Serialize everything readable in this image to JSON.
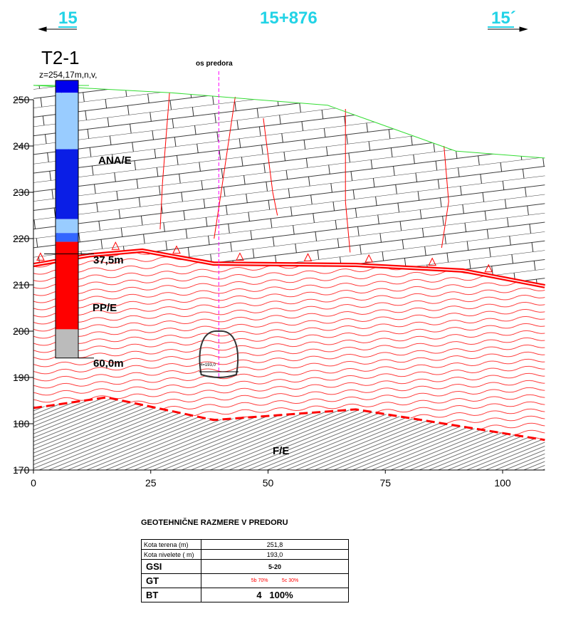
{
  "header": {
    "left_station": "15",
    "center_station": "15+876",
    "right_station": "15´"
  },
  "borehole": {
    "name": "T2-1",
    "elevation": "z=254,17m,n,v,",
    "depth_1": "37,5m",
    "depth_2": "60,0m",
    "segments": [
      {
        "top": 254.17,
        "bottom": 251.5,
        "color": "#0000ee"
      },
      {
        "top": 251.5,
        "bottom": 239.3,
        "color": "#99ccff"
      },
      {
        "top": 239.3,
        "bottom": 224.2,
        "color": "#0a1ee6"
      },
      {
        "top": 224.2,
        "bottom": 221.2,
        "color": "#99ccff"
      },
      {
        "top": 221.2,
        "bottom": 219.3,
        "color": "#3366ff"
      },
      {
        "top": 219.3,
        "bottom": 200.4,
        "color": "#ff0000"
      },
      {
        "top": 200.4,
        "bottom": 194.2,
        "color": "#bbbbbb"
      }
    ]
  },
  "tunnel_axis_label": "os predora",
  "tunnel_label": "H=193,0",
  "layers": {
    "upper": "ANA/E",
    "middle": "PP/E",
    "lower": "F/E"
  },
  "chart_data": {
    "type": "geological-profile",
    "xlim": [
      0,
      110
    ],
    "ylim": [
      170,
      252
    ],
    "xticks": [
      0,
      25,
      50,
      75,
      100
    ],
    "yticks": [
      170,
      180,
      190,
      200,
      210,
      220,
      230,
      240,
      250
    ],
    "terrain": [
      [
        0,
        253.1
      ],
      [
        29.3,
        251.5
      ],
      [
        62.7,
        248.8
      ],
      [
        65.7,
        247.7
      ],
      [
        90,
        238.9
      ],
      [
        109,
        237.4
      ]
    ],
    "boundary_ana_pp": [
      [
        0,
        214.3
      ],
      [
        12,
        216.4
      ],
      [
        23.2,
        217.4
      ],
      [
        38.4,
        214.6
      ],
      [
        68.7,
        214.3
      ],
      [
        91.5,
        213.1
      ],
      [
        109,
        209.7
      ]
    ],
    "boundary_pp_fe": [
      [
        0,
        183.4
      ],
      [
        15.6,
        185.7
      ],
      [
        38.4,
        180.8
      ],
      [
        68.7,
        183.1
      ],
      [
        109,
        176.5
      ]
    ],
    "tunnel": {
      "x": 39.5,
      "bottom": 190,
      "top": 200,
      "width": 8.4,
      "axis_x": 39.5
    },
    "faults": [
      [
        [
          29,
          251.5
        ],
        [
          27.5,
          232
        ],
        [
          27,
          222
        ]
      ],
      [
        [
          43,
          250.6
        ],
        [
          40,
          230
        ],
        [
          38.5,
          220
        ]
      ],
      [
        [
          49,
          246
        ],
        [
          51,
          230
        ],
        [
          52,
          225
        ]
      ],
      [
        [
          66.5,
          248
        ],
        [
          66.5,
          228
        ],
        [
          67.5,
          217
        ]
      ],
      [
        [
          87.5,
          240
        ],
        [
          88.5,
          228
        ],
        [
          87,
          218
        ]
      ]
    ],
    "triangles": [
      1.5,
      17.5,
      30.5,
      44,
      58.5,
      71.5,
      85,
      97
    ]
  },
  "table": {
    "title": "GEOTEHNIČNE RAZMERE V PREDORU",
    "rows": [
      {
        "label": "Kota terena (m)",
        "value": "251,8"
      },
      {
        "label": "Kota nivelete ( m)",
        "value": "193,0"
      }
    ],
    "gsi": {
      "label": "GSI",
      "value": "5-20"
    },
    "gt": {
      "label": "GT",
      "value_a": "5b  70%",
      "value_b": "5c  30%"
    },
    "bt": {
      "label": "BT",
      "value": "4   100%"
    }
  },
  "colors": {
    "terrain": "#33dd33",
    "boundary": "#ff0000",
    "axis": "#ff00ff",
    "header": "#22d3e6"
  }
}
